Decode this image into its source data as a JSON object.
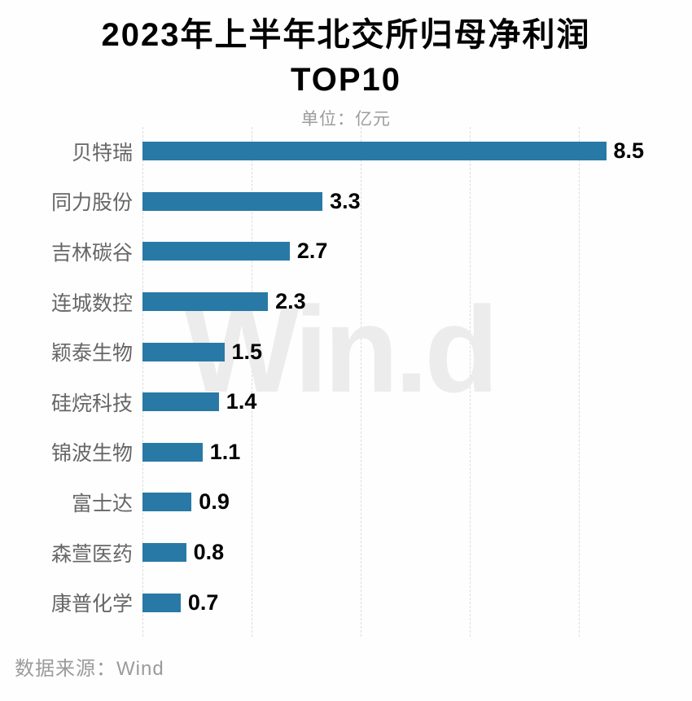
{
  "chart_data": {
    "type": "bar",
    "orientation": "horizontal",
    "title": "2023年上半年北交所归母净利润TOP10",
    "title_lines": [
      "2023年上半年北交所归母净利润",
      "TOP10"
    ],
    "subtitle": "单位：亿元",
    "categories": [
      "贝特瑞",
      "同力股份",
      "吉林碳谷",
      "连城数控",
      "颖泰生物",
      "硅烷科技",
      "锦波生物",
      "富士达",
      "森萱医药",
      "康普化学"
    ],
    "values": [
      8.5,
      3.3,
      2.7,
      2.3,
      1.5,
      1.4,
      1.1,
      0.9,
      0.8,
      0.7
    ],
    "value_labels": [
      "8.5",
      "3.3",
      "2.7",
      "2.3",
      "1.5",
      "1.4",
      "1.1",
      "0.9",
      "0.8",
      "0.7"
    ],
    "xlabel": "",
    "ylabel": "",
    "x_axis": {
      "min": 0,
      "max": 9.6,
      "gridline_values": [
        0,
        2,
        4,
        6,
        8
      ],
      "gridline_style": "dashed"
    },
    "legend": "none",
    "bar_color": "#2979a6",
    "value_label_color": "#000000",
    "category_label_color": "#666666"
  },
  "watermark": "Win.d",
  "footer": {
    "source_label": "数据来源：Wind"
  },
  "colors": {
    "background": "#fefefe",
    "gridline": "#dcdcdc",
    "watermark": "#ececec",
    "subtitle_gray": "#9c9c9c"
  }
}
